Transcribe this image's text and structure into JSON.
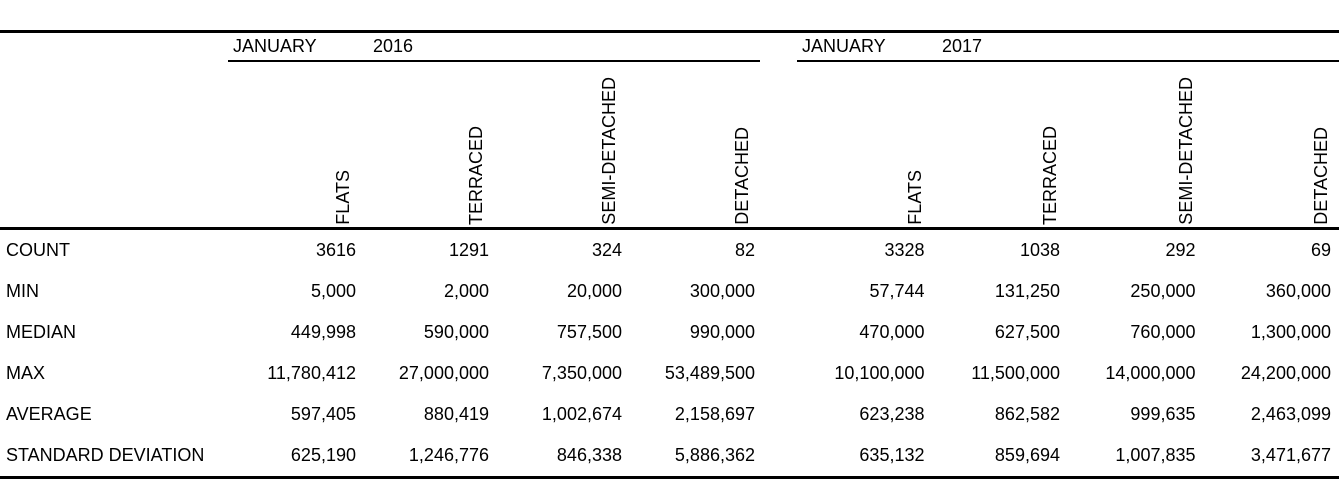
{
  "colors": {
    "text": "#000000",
    "background": "#ffffff",
    "rule_lines": "#000000"
  },
  "chart_data": {
    "type": "table",
    "layout": {
      "grid": "off",
      "thick_rules": [
        "top",
        "below-column-headers",
        "bottom"
      ],
      "group_underlines": true,
      "column_headers_rotated_90ccw": true
    },
    "column_groups": [
      {
        "month": "JANUARY",
        "year": "2016",
        "columns": [
          "FLATS",
          "TERRACED",
          "SEMI-DETACHED",
          "DETACHED"
        ]
      },
      {
        "month": "JANUARY",
        "year": "2017",
        "columns": [
          "FLATS",
          "TERRACED",
          "SEMI-DETACHED",
          "DETACHED"
        ]
      }
    ],
    "row_labels": [
      "COUNT",
      "MIN",
      "MEDIAN",
      "MAX",
      "AVERAGE",
      "STANDARD DEVIATION"
    ],
    "rows": [
      {
        "label": "COUNT",
        "jan_2016": [
          "3616",
          "1291",
          "324",
          "82"
        ],
        "jan_2017": [
          "3328",
          "1038",
          "292",
          "69"
        ]
      },
      {
        "label": "MIN",
        "jan_2016": [
          "5,000",
          "2,000",
          "20,000",
          "300,000"
        ],
        "jan_2017": [
          "57,744",
          "131,250",
          "250,000",
          "360,000"
        ]
      },
      {
        "label": "MEDIAN",
        "jan_2016": [
          "449,998",
          "590,000",
          "757,500",
          "990,000"
        ],
        "jan_2017": [
          "470,000",
          "627,500",
          "760,000",
          "1,300,000"
        ]
      },
      {
        "label": "MAX",
        "jan_2016": [
          "11,780,412",
          "27,000,000",
          "7,350,000",
          "53,489,500"
        ],
        "jan_2017": [
          "10,100,000",
          "11,500,000",
          "14,000,000",
          "24,200,000"
        ]
      },
      {
        "label": "AVERAGE",
        "jan_2016": [
          "597,405",
          "880,419",
          "1,002,674",
          "2,158,697"
        ],
        "jan_2017": [
          "623,238",
          "862,582",
          "999,635",
          "2,463,099"
        ]
      },
      {
        "label": "STANDARD DEVIATION",
        "jan_2016": [
          "625,190",
          "1,246,776",
          "846,338",
          "5,886,362"
        ],
        "jan_2017": [
          "635,132",
          "859,694",
          "1,007,835",
          "3,471,677"
        ]
      }
    ],
    "values_numeric": {
      "jan_2016": {
        "FLATS": {
          "count": 3616,
          "min": 5000,
          "median": 449998,
          "max": 11780412,
          "average": 597405,
          "standard_deviation": 625190
        },
        "TERRACED": {
          "count": 1291,
          "min": 2000,
          "median": 590000,
          "max": 27000000,
          "average": 880419,
          "standard_deviation": 1246776
        },
        "SEMI-DETACHED": {
          "count": 324,
          "min": 20000,
          "median": 757500,
          "max": 7350000,
          "average": 1002674,
          "standard_deviation": 846338
        },
        "DETACHED": {
          "count": 82,
          "min": 300000,
          "median": 990000,
          "max": 53489500,
          "average": 2158697,
          "standard_deviation": 5886362
        }
      },
      "jan_2017": {
        "FLATS": {
          "count": 3328,
          "min": 57744,
          "median": 470000,
          "max": 10100000,
          "average": 623238,
          "standard_deviation": 635132
        },
        "TERRACED": {
          "count": 1038,
          "min": 131250,
          "median": 627500,
          "max": 11500000,
          "average": 862582,
          "standard_deviation": 859694
        },
        "SEMI-DETACHED": {
          "count": 292,
          "min": 250000,
          "median": 760000,
          "max": 14000000,
          "average": 999635,
          "standard_deviation": 1007835
        },
        "DETACHED": {
          "count": 69,
          "min": 360000,
          "median": 1300000,
          "max": 24200000,
          "average": 2463099,
          "standard_deviation": 3471677
        }
      }
    }
  }
}
